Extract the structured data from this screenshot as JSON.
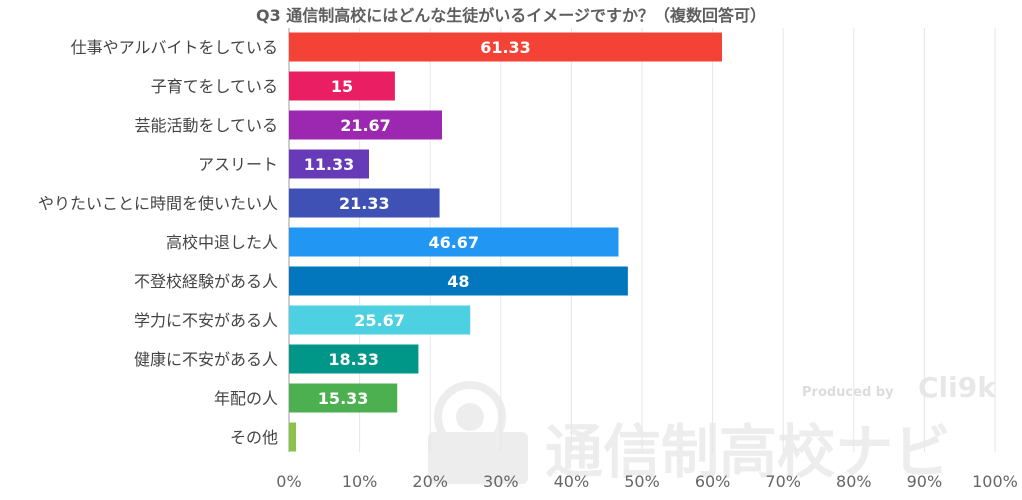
{
  "watermark": {
    "produced_by": "Produced by",
    "brand": "Cli9k",
    "site_name": "通信制高校ナビ"
  },
  "chart_data": {
    "type": "bar",
    "orientation": "horizontal",
    "title": "Q3 通信制高校にはどんな生徒がいるイメージですか？（複数回答可）",
    "categories": [
      "仕事やアルバイトをしている",
      "子育てをしている",
      "芸能活動をしている",
      "アスリート",
      "やりたいことに時間を使いたい人",
      "高校中退した人",
      "不登校経験がある人",
      "学力に不安がある人",
      "健康に不安がある人",
      "年配の人",
      "その他"
    ],
    "values": [
      61.33,
      15,
      21.67,
      11.33,
      21.33,
      46.67,
      48,
      25.67,
      18.33,
      15.33,
      1
    ],
    "data_labels": [
      "61.33",
      "15",
      "21.67",
      "11.33",
      "21.33",
      "46.67",
      "48",
      "25.67",
      "18.33",
      "15.33",
      ""
    ],
    "colors": [
      "#f44336",
      "#e91e63",
      "#9c27b0",
      "#673ab7",
      "#3f51b5",
      "#2196f3",
      "#0277bd",
      "#4dd0e1",
      "#009688",
      "#4caf50",
      "#8bc34a"
    ],
    "xlim": [
      0,
      100
    ],
    "xticks": [
      0,
      10,
      20,
      30,
      40,
      50,
      60,
      70,
      80,
      90,
      100
    ],
    "xtick_labels": [
      "0%",
      "10%",
      "20%",
      "30%",
      "40%",
      "50%",
      "60%",
      "70%",
      "80%",
      "90%",
      "100%"
    ],
    "xlabel": "",
    "ylabel": "",
    "grid": true,
    "legend": "none"
  }
}
